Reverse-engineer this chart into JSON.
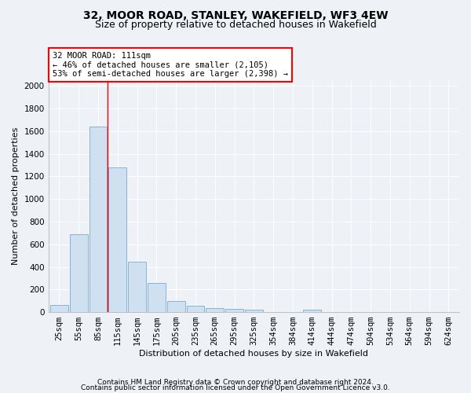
{
  "title": "32, MOOR ROAD, STANLEY, WAKEFIELD, WF3 4EW",
  "subtitle": "Size of property relative to detached houses in Wakefield",
  "xlabel": "Distribution of detached houses by size in Wakefield",
  "ylabel": "Number of detached properties",
  "categories": [
    "25sqm",
    "55sqm",
    "85sqm",
    "115sqm",
    "145sqm",
    "175sqm",
    "205sqm",
    "235sqm",
    "265sqm",
    "295sqm",
    "325sqm",
    "354sqm",
    "384sqm",
    "414sqm",
    "444sqm",
    "474sqm",
    "504sqm",
    "534sqm",
    "564sqm",
    "594sqm",
    "624sqm"
  ],
  "values": [
    65,
    685,
    1640,
    1280,
    445,
    255,
    95,
    55,
    35,
    25,
    20,
    0,
    0,
    20,
    0,
    0,
    0,
    0,
    0,
    0,
    0
  ],
  "bar_color": "#cfe0f0",
  "bar_edge_color": "#8ab4d4",
  "red_line_x": 2.5,
  "annotation_text": "32 MOOR ROAD: 111sqm\n← 46% of detached houses are smaller (2,105)\n53% of semi-detached houses are larger (2,398) →",
  "annotation_box_color": "white",
  "annotation_box_edge_color": "red",
  "ylim": [
    0,
    2050
  ],
  "yticks": [
    0,
    200,
    400,
    600,
    800,
    1000,
    1200,
    1400,
    1600,
    1800,
    2000
  ],
  "footer_line1": "Contains HM Land Registry data © Crown copyright and database right 2024.",
  "footer_line2": "Contains public sector information licensed under the Open Government Licence v3.0.",
  "bg_color": "#eef2f7",
  "plot_bg_color": "#eef2f7",
  "grid_color": "white",
  "title_fontsize": 10,
  "subtitle_fontsize": 9,
  "axis_label_fontsize": 8,
  "tick_fontsize": 7.5,
  "footer_fontsize": 6.5
}
